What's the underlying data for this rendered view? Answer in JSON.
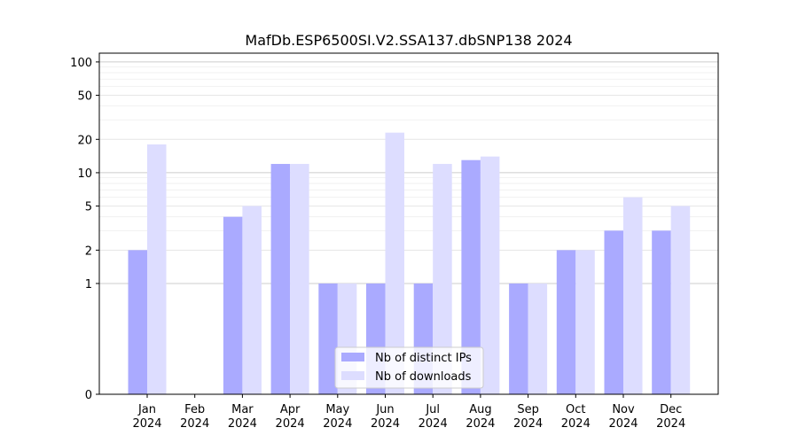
{
  "chart_data": {
    "type": "bar",
    "title": "MafDb.ESP6500SI.V2.SSA137.dbSNP138 2024",
    "xlabel": "",
    "ylabel": "",
    "y_scale": "symlog",
    "ylim": [
      0,
      120
    ],
    "y_ticks": [
      0,
      1,
      2,
      5,
      10,
      20,
      50,
      100
    ],
    "grid": "horizontal",
    "legend_position": "lower-center",
    "categories": [
      [
        "Jan",
        "2024"
      ],
      [
        "Feb",
        "2024"
      ],
      [
        "Mar",
        "2024"
      ],
      [
        "Apr",
        "2024"
      ],
      [
        "May",
        "2024"
      ],
      [
        "Jun",
        "2024"
      ],
      [
        "Jul",
        "2024"
      ],
      [
        "Aug",
        "2024"
      ],
      [
        "Sep",
        "2024"
      ],
      [
        "Oct",
        "2024"
      ],
      [
        "Nov",
        "2024"
      ],
      [
        "Dec",
        "2024"
      ]
    ],
    "series": [
      {
        "name": "Nb of distinct IPs",
        "color": "#aaaaff",
        "values": [
          2,
          0,
          4,
          12,
          1,
          1,
          1,
          13,
          1,
          2,
          3,
          3
        ]
      },
      {
        "name": "Nb of downloads",
        "color": "#ddddff",
        "values": [
          18,
          0,
          5,
          12,
          1,
          23,
          12,
          14,
          1,
          2,
          6,
          5
        ]
      }
    ]
  }
}
